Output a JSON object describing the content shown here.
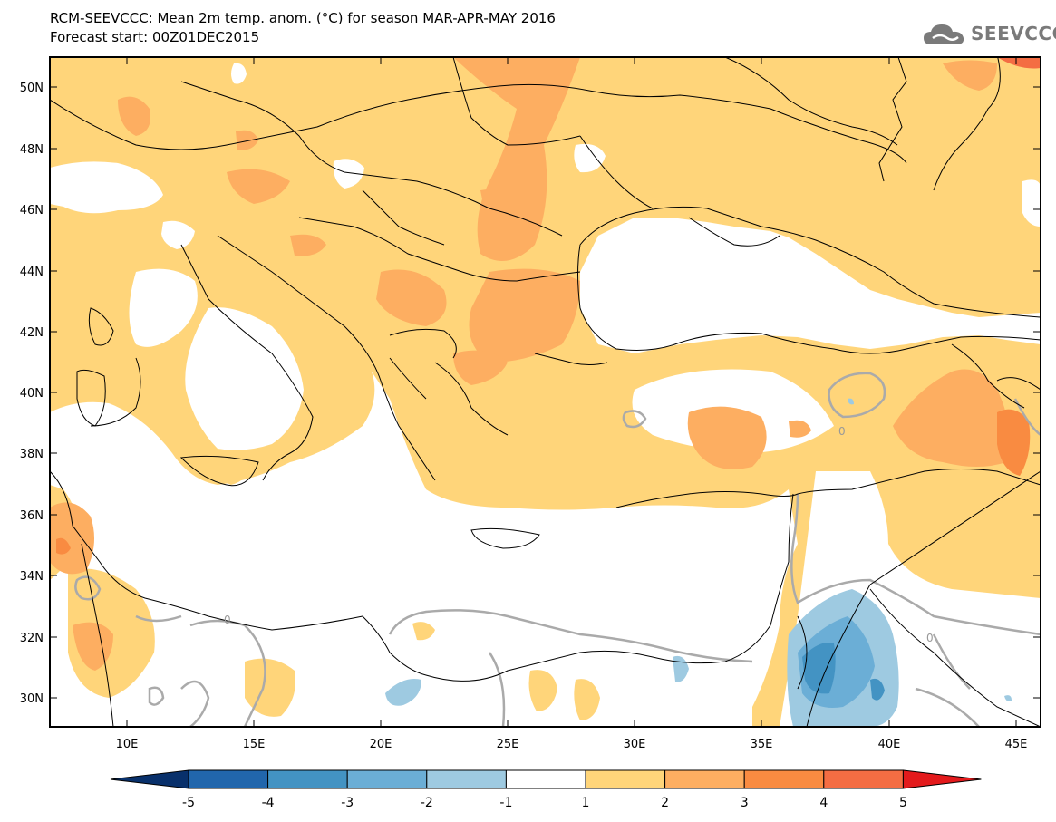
{
  "header": {
    "title_line1": "RCM-SEEVCCC: Mean 2m temp. anom. (°C) for season MAR-APR-MAY 2016",
    "title_line2": "Forecast start: 00Z01DEC2015",
    "logo_text": "SEEVCCC"
  },
  "map": {
    "lon_labels": [
      "10E",
      "15E",
      "20E",
      "25E",
      "30E",
      "35E",
      "40E",
      "45E"
    ],
    "lat_labels": [
      "50N",
      "48N",
      "46N",
      "44N",
      "42N",
      "40N",
      "38N",
      "36N",
      "34N",
      "32N",
      "30N"
    ],
    "contour_labels": [
      "0",
      "0",
      "0"
    ]
  },
  "colorbar": {
    "tick_labels": [
      "-5",
      "-4",
      "-3",
      "-2",
      "-1",
      "1",
      "2",
      "3",
      "4",
      "5"
    ],
    "colors": [
      "#08306b",
      "#2166ac",
      "#4393c3",
      "#6baed6",
      "#9ecae1",
      "#ffffff",
      "#ffd57a",
      "#fdae61",
      "#f98b41",
      "#f46d43",
      "#e31a1c"
    ]
  }
}
